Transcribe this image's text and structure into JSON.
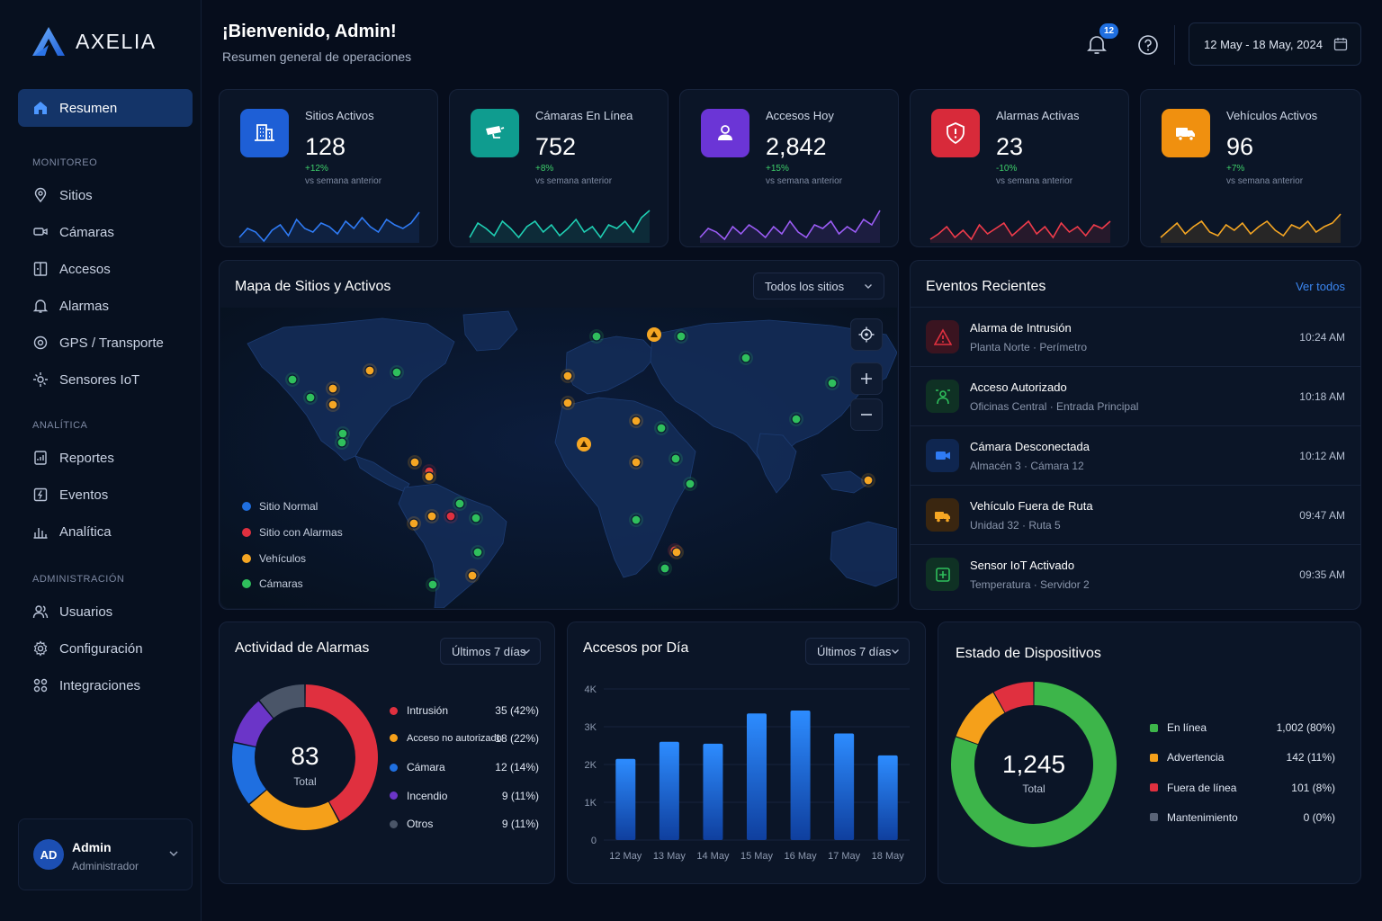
{
  "app": {
    "name": "AXELIA"
  },
  "sidebar": {
    "active": {
      "label": "Resumen",
      "icon": "home-icon"
    },
    "sections": [
      {
        "title": "MONITOREO",
        "items": [
          {
            "label": "Sitios",
            "icon": "map-pin-icon"
          },
          {
            "label": "Cámaras",
            "icon": "camera-icon"
          },
          {
            "label": "Accesos",
            "icon": "door-icon"
          },
          {
            "label": "Alarmas",
            "icon": "bell-icon"
          },
          {
            "label": "GPS / Transporte",
            "icon": "gps-icon"
          },
          {
            "label": "Sensores IoT",
            "icon": "sensor-icon"
          }
        ]
      },
      {
        "title": "ANALÍTICA",
        "items": [
          {
            "label": "Reportes",
            "icon": "report-icon"
          },
          {
            "label": "Eventos",
            "icon": "event-icon"
          },
          {
            "label": "Analítica",
            "icon": "analytics-icon"
          }
        ]
      },
      {
        "title": "ADMINISTRACIÓN",
        "items": [
          {
            "label": "Usuarios",
            "icon": "users-icon"
          },
          {
            "label": "Configuración",
            "icon": "gear-icon"
          },
          {
            "label": "Integraciones",
            "icon": "integrations-icon"
          }
        ]
      }
    ],
    "user": {
      "initials": "AD",
      "name": "Admin",
      "role": "Administrador"
    }
  },
  "header": {
    "greeting": "¡Bienvenido, Admin!",
    "subtitle": "Resumen general de operaciones",
    "notifications": "12",
    "date_range": "12 May - 18 May, 2024"
  },
  "kpis": [
    {
      "label": "Sitios Activos",
      "value": "128",
      "delta": "+12%",
      "vs": "vs semana anterior",
      "color": "#1e5fd6",
      "spark": "#2f7bf5",
      "delta_color": "#3ecf6a",
      "icon": "building-icon"
    },
    {
      "label": "Cámaras En Línea",
      "value": "752",
      "delta": "+8%",
      "vs": "vs semana anterior",
      "color": "#0f9c8f",
      "spark": "#1fcfb3",
      "delta_color": "#3ecf6a",
      "icon": "cctv-icon"
    },
    {
      "label": "Accesos Hoy",
      "value": "2,842",
      "delta": "+15%",
      "vs": "vs semana anterior",
      "color": "#6b35d6",
      "spark": "#9b5cf5",
      "delta_color": "#3ecf6a",
      "icon": "user-badge-icon"
    },
    {
      "label": "Alarmas Activas",
      "value": "23",
      "delta": "-10%",
      "vs": "vs semana anterior",
      "color": "#d82a3a",
      "spark": "#ef3b4b",
      "delta_color": "#3ecf6a",
      "icon": "shield-alert-icon"
    },
    {
      "label": "Vehículos Activos",
      "value": "96",
      "delta": "+7%",
      "vs": "vs semana anterior",
      "color": "#f0900f",
      "spark": "#f5a623",
      "delta_color": "#3ecf6a",
      "icon": "truck-icon"
    }
  ],
  "map": {
    "title": "Mapa de Sitios y Activos",
    "filter": "Todos los sitios",
    "legend": [
      {
        "label": "Sitio Normal",
        "color": "#1f6fe0"
      },
      {
        "label": "Sitio con Alarmas",
        "color": "#e0303f"
      },
      {
        "label": "Vehículos",
        "color": "#f5a623"
      },
      {
        "label": "Cámaras",
        "color": "#2fbf5c"
      }
    ]
  },
  "events": {
    "title": "Eventos Recientes",
    "link": "Ver todos",
    "items": [
      {
        "title": "Alarma de Intrusión",
        "sub": "Planta Norte · Perímetro",
        "time": "10:24 AM",
        "color": "#e0303f",
        "bg": "#3a1420",
        "icon": "warning-icon"
      },
      {
        "title": "Acceso Autorizado",
        "sub": "Oficinas Central · Entrada Principal",
        "time": "10:18 AM",
        "color": "#2fbf5c",
        "bg": "#0f3124",
        "icon": "access-icon"
      },
      {
        "title": "Cámara Desconectada",
        "sub": "Almacén 3 · Cámara 12",
        "time": "10:12 AM",
        "color": "#2f7bf5",
        "bg": "#0f2650",
        "icon": "camera-off-icon"
      },
      {
        "title": "Vehículo Fuera de Ruta",
        "sub": "Unidad 32 · Ruta 5",
        "time": "09:47 AM",
        "color": "#f5a623",
        "bg": "#3a2610",
        "icon": "truck-icon"
      },
      {
        "title": "Sensor IoT Activado",
        "sub": "Temperatura · Servidor 2",
        "time": "09:35 AM",
        "color": "#2fbf5c",
        "bg": "#0f3124",
        "icon": "sensor-icon"
      }
    ]
  },
  "alarms": {
    "title": "Actividad de Alarmas",
    "filter": "Últimos 7 días",
    "total": "83",
    "total_label": "Total"
  },
  "accesses": {
    "title": "Accesos por Día",
    "filter": "Últimos 7 días"
  },
  "devices": {
    "title": "Estado de Dispositivos",
    "total": "1,245",
    "total_label": "Total"
  },
  "chart_data": [
    {
      "type": "pie",
      "title": "Actividad de Alarmas",
      "categories": [
        "Intrusión",
        "Acceso no autorizado",
        "Cámara",
        "Incendio",
        "Otros"
      ],
      "values": [
        35,
        18,
        12,
        9,
        9
      ],
      "labels": [
        "35 (42%)",
        "18 (22%)",
        "12 (14%)",
        "9 (11%)",
        "9 (11%)"
      ],
      "colors": [
        "#e0303f",
        "#f5a01a",
        "#1f6fe0",
        "#6b35c8",
        "#4a5568"
      ]
    },
    {
      "type": "bar",
      "title": "Accesos por Día",
      "categories": [
        "12 May",
        "13 May",
        "14 May",
        "15 May",
        "16 May",
        "17 May",
        "18 May"
      ],
      "values": [
        2150,
        2600,
        2550,
        3350,
        3430,
        2820,
        2240
      ],
      "yticks": [
        "0",
        "1K",
        "2K",
        "3K",
        "4K"
      ],
      "ylim": [
        0,
        4000
      ],
      "grid": true
    },
    {
      "type": "pie",
      "title": "Estado de Dispositivos",
      "categories": [
        "En línea",
        "Advertencia",
        "Fuera de línea",
        "Mantenimiento"
      ],
      "values": [
        1002,
        142,
        101,
        0
      ],
      "labels": [
        "1,002 (80%)",
        "142 (11%)",
        "101 (8%)",
        "0 (0%)"
      ],
      "colors": [
        "#3db54a",
        "#f5a01a",
        "#e0303f",
        "#5a6478"
      ]
    }
  ]
}
